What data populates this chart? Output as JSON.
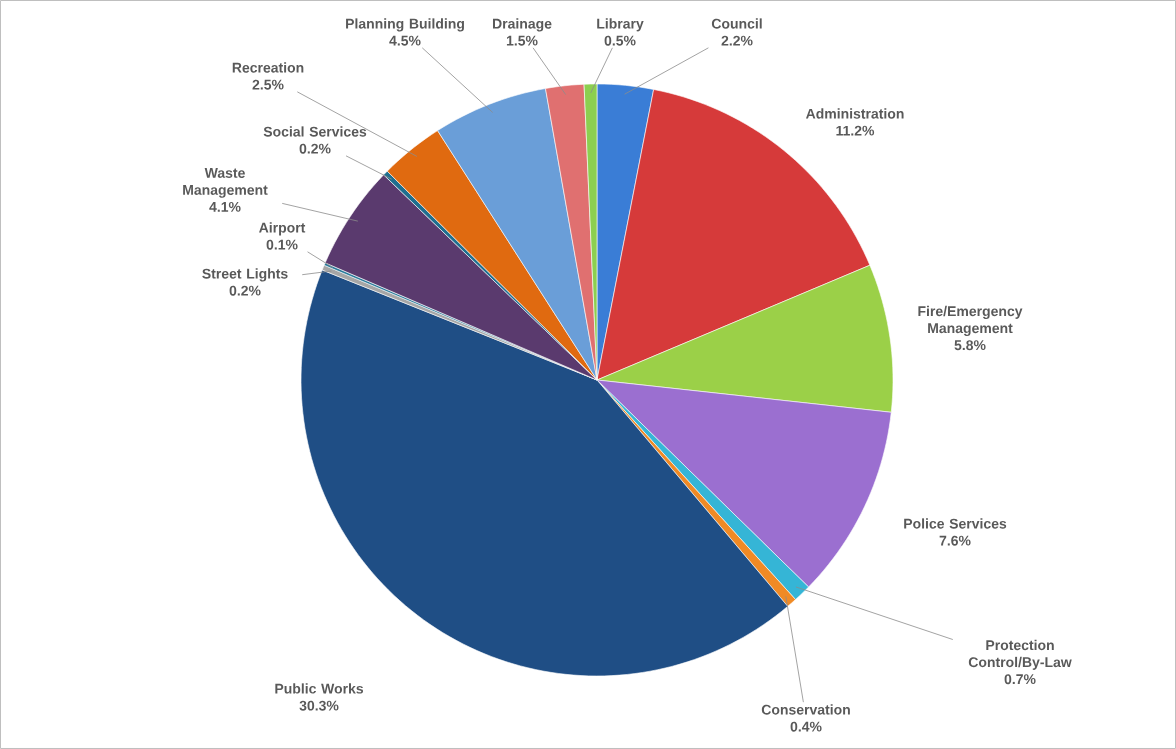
{
  "chart_data": {
    "type": "pie",
    "categories": [
      "Council",
      "Administration",
      "Fire/Emergency Management",
      "Police Services",
      "Protection Control/By-Law",
      "Conservation",
      "Public Works",
      "Street Lights",
      "Airport",
      "Waste Management",
      "Social Services",
      "Recreation",
      "Planning Building",
      "Drainage",
      "Library"
    ],
    "values": [
      2.2,
      11.2,
      5.8,
      7.6,
      0.7,
      0.4,
      30.3,
      0.2,
      0.1,
      4.1,
      0.2,
      2.5,
      4.5,
      1.5,
      0.5
    ],
    "value_labels": [
      "2.2%",
      "11.2%",
      "5.8%",
      "7.6%",
      "0.7%",
      "0.4%",
      "30.3%",
      "0.2%",
      "0.1%",
      "4.1%",
      "0.2%",
      "2.5%",
      "4.5%",
      "1.5%",
      "0.5%"
    ],
    "colors": [
      "#3a7dd6",
      "#d63a3a",
      "#9bd048",
      "#9b6fd0",
      "#35b5d6",
      "#f08a25",
      "#1f4e85",
      "#a6a6a6",
      "#2a7a9a",
      "#5a3a6e",
      "#1f6f8f",
      "#e06a10",
      "#6a9ed8",
      "#e07070",
      "#8ccf50"
    ]
  }
}
